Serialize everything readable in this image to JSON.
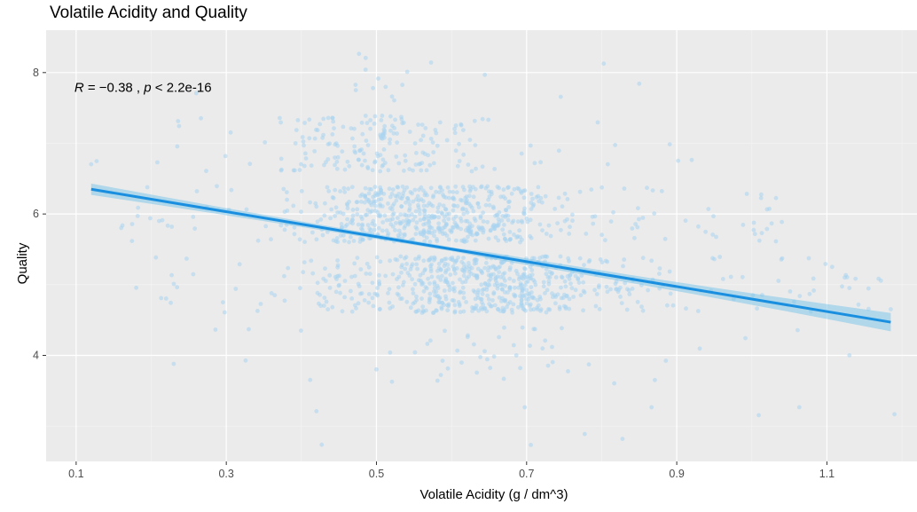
{
  "chart_data": {
    "type": "scatter",
    "title": "Volatile Acidity and Quality",
    "xlabel": "Volatile Acidity (g / dm^3)",
    "ylabel": "Quality",
    "xlim": [
      0.06,
      1.22
    ],
    "ylim": [
      2.5,
      8.6
    ],
    "x_ticks": [
      0.1,
      0.3,
      0.5,
      0.7,
      0.9,
      1.1
    ],
    "y_ticks": [
      4,
      6,
      8
    ],
    "grid": true,
    "annotation": {
      "R_symbol": "R",
      "R_text": " = −0.38 , ",
      "p_symbol": "p",
      "p_text": " < 2.2e-16"
    },
    "point_color": "#a8d4f0",
    "line_color": "#1a8fe0",
    "band_color": "#7fc6ea",
    "panel_color": "#ebebeb",
    "regression": {
      "x": [
        0.12,
        1.185
      ],
      "y": [
        6.35,
        4.47
      ],
      "se": [
        0.08,
        0.13
      ]
    },
    "clusters": [
      {
        "quality": 3,
        "n": 10,
        "x_range": [
          0.42,
          1.19
        ]
      },
      {
        "quality": 4,
        "n": 53,
        "x_range": [
          0.23,
          1.13
        ]
      },
      {
        "quality": 5,
        "n": 681,
        "x_range": [
          0.18,
          1.185
        ]
      },
      {
        "quality": 6,
        "n": 638,
        "x_range": [
          0.16,
          1.04
        ]
      },
      {
        "quality": 7,
        "n": 199,
        "x_range": [
          0.12,
          0.92
        ]
      },
      {
        "quality": 8,
        "n": 18,
        "x_range": [
          0.26,
          0.85
        ]
      }
    ],
    "jitter_height": 0.4
  }
}
